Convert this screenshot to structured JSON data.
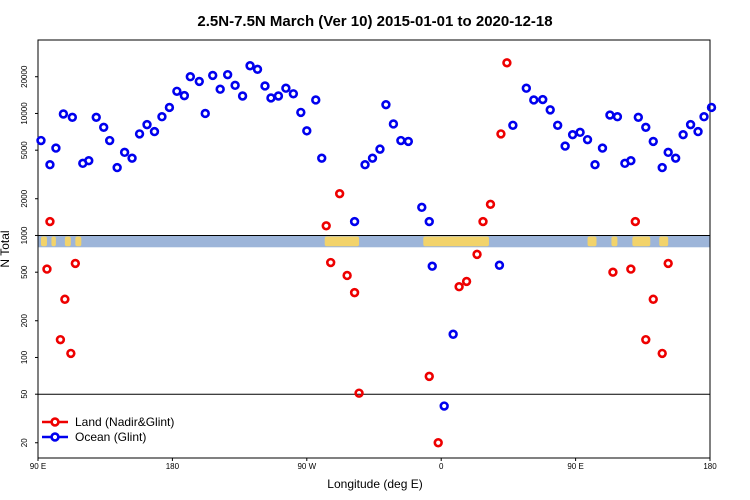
{
  "chart_data": {
    "type": "scatter",
    "title": "2.5N-7.5N March (Ver 10)   2015-01-01 to 2020-12-18",
    "xlabel": "Longitude (deg E)",
    "ylabel": "N Total",
    "y_scale": "log",
    "ylim": [
      15,
      40000
    ],
    "x_ticks": [
      {
        "label": "90 E",
        "value": 90
      },
      {
        "label": "180",
        "value": 180
      },
      {
        "label": "90 W",
        "value": 270
      },
      {
        "label": "0",
        "value": 360
      },
      {
        "label": "90 E",
        "value": 450
      },
      {
        "label": "180",
        "value": 540
      }
    ],
    "y_ticks": [
      20,
      50,
      100,
      200,
      500,
      1000,
      2000,
      5000,
      10000,
      20000
    ],
    "reference_lines": [
      1000,
      50
    ],
    "legend_position": "bottom-left",
    "land_band": {
      "y_from": 800,
      "y_to": 1000
    },
    "series": [
      {
        "name": "Land (Nadir&Glint)",
        "color": "#ee0000",
        "points": [
          [
            96,
            530
          ],
          [
            98,
            1300
          ],
          [
            105,
            140
          ],
          [
            108,
            300
          ],
          [
            112,
            108
          ],
          [
            115,
            590
          ],
          [
            283,
            1200
          ],
          [
            286,
            600
          ],
          [
            292,
            2200
          ],
          [
            297,
            470
          ],
          [
            302,
            340
          ],
          [
            305,
            51
          ],
          [
            352,
            70
          ],
          [
            358,
            20
          ],
          [
            372,
            380
          ],
          [
            377,
            420
          ],
          [
            384,
            700
          ],
          [
            388,
            1300
          ],
          [
            393,
            1800
          ],
          [
            400,
            6800
          ],
          [
            404,
            26000
          ],
          [
            475,
            500
          ],
          [
            487,
            530
          ],
          [
            490,
            1300
          ],
          [
            497,
            140
          ],
          [
            502,
            300
          ],
          [
            508,
            108
          ],
          [
            512,
            590
          ]
        ]
      },
      {
        "name": "Ocean (Glint)",
        "color": "#0000ee",
        "points": [
          [
            92,
            6000
          ],
          [
            98,
            3800
          ],
          [
            102,
            5200
          ],
          [
            107,
            9900
          ],
          [
            113,
            9300
          ],
          [
            120,
            3900
          ],
          [
            124,
            4100
          ],
          [
            129,
            9300
          ],
          [
            134,
            7700
          ],
          [
            138,
            6000
          ],
          [
            143,
            3600
          ],
          [
            148,
            4800
          ],
          [
            153,
            4300
          ],
          [
            158,
            6800
          ],
          [
            163,
            8100
          ],
          [
            168,
            7100
          ],
          [
            173,
            9400
          ],
          [
            178,
            11200
          ],
          [
            183,
            15200
          ],
          [
            188,
            14000
          ],
          [
            192,
            20000
          ],
          [
            198,
            18300
          ],
          [
            202,
            10000
          ],
          [
            207,
            20500
          ],
          [
            212,
            15800
          ],
          [
            217,
            20800
          ],
          [
            222,
            17000
          ],
          [
            227,
            13900
          ],
          [
            232,
            24600
          ],
          [
            237,
            23000
          ],
          [
            242,
            16800
          ],
          [
            246,
            13400
          ],
          [
            251,
            13900
          ],
          [
            256,
            16100
          ],
          [
            261,
            14500
          ],
          [
            266,
            10200
          ],
          [
            270,
            7200
          ],
          [
            276,
            12900
          ],
          [
            280,
            4300
          ],
          [
            302,
            1300
          ],
          [
            309,
            3800
          ],
          [
            314,
            4300
          ],
          [
            319,
            5100
          ],
          [
            323,
            11800
          ],
          [
            328,
            8200
          ],
          [
            333,
            6000
          ],
          [
            338,
            5900
          ],
          [
            347,
            1700
          ],
          [
            352,
            1300
          ],
          [
            354,
            560
          ],
          [
            362,
            40
          ],
          [
            368,
            155
          ],
          [
            399,
            570
          ],
          [
            408,
            8000
          ],
          [
            417,
            16100
          ],
          [
            422,
            12900
          ],
          [
            428,
            13000
          ],
          [
            433,
            10700
          ],
          [
            438,
            8000
          ],
          [
            443,
            5400
          ],
          [
            448,
            6700
          ],
          [
            453,
            7000
          ],
          [
            458,
            6100
          ],
          [
            463,
            3800
          ],
          [
            468,
            5200
          ],
          [
            473,
            9700
          ],
          [
            478,
            9400
          ],
          [
            483,
            3900
          ],
          [
            487,
            4100
          ],
          [
            492,
            9300
          ],
          [
            497,
            7700
          ],
          [
            502,
            5900
          ],
          [
            508,
            3600
          ],
          [
            512,
            4800
          ],
          [
            517,
            4300
          ],
          [
            522,
            6700
          ],
          [
            527,
            8100
          ],
          [
            532,
            7100
          ],
          [
            536,
            9400
          ],
          [
            541,
            11200
          ]
        ]
      }
    ]
  }
}
